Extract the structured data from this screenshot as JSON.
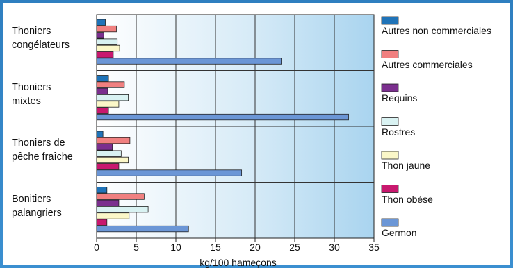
{
  "chart_data": {
    "type": "bar",
    "orientation": "horizontal",
    "categories": [
      "Thoniers\ncongélateurs",
      "Thoniers\nmixtes",
      "Thoniers de\npêche fraîche",
      "Bonitiers\npalangriers"
    ],
    "series": [
      {
        "name": "Autres non commerciales",
        "color": "#1f73b8",
        "values": [
          1.1,
          1.5,
          0.8,
          1.3
        ]
      },
      {
        "name": "Autres commerciales",
        "color": "#f08080",
        "values": [
          2.5,
          3.5,
          4.2,
          6.0
        ]
      },
      {
        "name": "Requins",
        "color": "#7b2f8e",
        "values": [
          0.9,
          1.4,
          2.0,
          2.8
        ]
      },
      {
        "name": "Rostres",
        "color": "#d9f2f2",
        "values": [
          2.6,
          4.0,
          3.1,
          6.5
        ]
      },
      {
        "name": "Thon jaune",
        "color": "#fbf7c8",
        "values": [
          2.9,
          2.8,
          4.0,
          4.1
        ]
      },
      {
        "name": "Thon obèse",
        "color": "#c8186e",
        "values": [
          2.1,
          1.5,
          2.8,
          1.3
        ]
      },
      {
        "name": "Germon",
        "color": "#6b96d6",
        "values": [
          23.3,
          31.8,
          18.3,
          11.6
        ]
      }
    ],
    "xlabel": "kg/100 hameçons",
    "xlim": [
      0,
      35
    ],
    "xticks": [
      0,
      5,
      10,
      15,
      20,
      25,
      30,
      35
    ],
    "grid": true,
    "legend_position": "right"
  }
}
